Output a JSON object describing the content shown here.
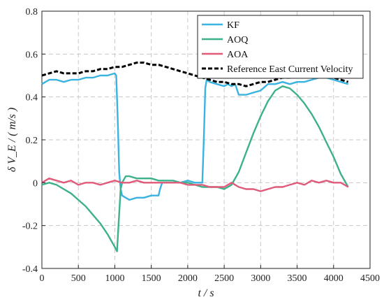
{
  "chart_data": {
    "type": "line",
    "title": "",
    "xlabel": "t / s",
    "ylabel": "δ V_E / ( m/s )",
    "xlim": [
      0,
      4500
    ],
    "ylim": [
      -0.4,
      0.8
    ],
    "xticks": [
      0,
      500,
      1000,
      1500,
      2000,
      2500,
      3000,
      3500,
      4000,
      4500
    ],
    "yticks": [
      -0.4,
      -0.2,
      0,
      0.2,
      0.4,
      0.6,
      0.8
    ],
    "xtick_labels": [
      "0",
      "500",
      "1000",
      "1500",
      "2000",
      "2500",
      "3000",
      "3500",
      "4000",
      "4500"
    ],
    "ytick_labels": [
      "-0.4",
      "-0.2",
      "0",
      "0.2",
      "0.4",
      "0.6",
      "0.8"
    ],
    "grid": true,
    "legend": "top-right",
    "series": [
      {
        "name": "KF",
        "color": "#3bb3e0",
        "dash": "solid",
        "x": [
          0,
          50,
          100,
          200,
          300,
          400,
          500,
          600,
          700,
          800,
          900,
          1000,
          1020,
          1040,
          1060,
          1080,
          1100,
          1150,
          1200,
          1300,
          1400,
          1500,
          1600,
          1620,
          1650,
          1700,
          1800,
          1900,
          2000,
          2100,
          2200,
          2220,
          2240,
          2260,
          2300,
          2400,
          2500,
          2550,
          2600,
          2650,
          2700,
          2800,
          2900,
          3000,
          3100,
          3200,
          3300,
          3400,
          3500,
          3600,
          3700,
          3800,
          3900,
          4000,
          4100,
          4200
        ],
        "y": [
          0.46,
          0.47,
          0.48,
          0.48,
          0.47,
          0.48,
          0.48,
          0.49,
          0.49,
          0.5,
          0.5,
          0.51,
          0.5,
          0.3,
          0.05,
          -0.03,
          -0.06,
          -0.07,
          -0.08,
          -0.07,
          -0.07,
          -0.06,
          -0.06,
          -0.03,
          0.0,
          0.0,
          0.0,
          0.0,
          0.01,
          0.0,
          0.0,
          0.2,
          0.44,
          0.48,
          0.47,
          0.46,
          0.45,
          0.46,
          0.45,
          0.46,
          0.41,
          0.41,
          0.42,
          0.43,
          0.46,
          0.46,
          0.47,
          0.46,
          0.47,
          0.47,
          0.48,
          0.49,
          0.49,
          0.48,
          0.47,
          0.46
        ]
      },
      {
        "name": "AOQ",
        "color": "#3db28a",
        "dash": "solid",
        "x": [
          0,
          100,
          200,
          300,
          400,
          500,
          600,
          700,
          800,
          900,
          1000,
          1030,
          1050,
          1080,
          1100,
          1150,
          1200,
          1300,
          1400,
          1500,
          1600,
          1700,
          1800,
          1900,
          2000,
          2100,
          2200,
          2300,
          2400,
          2500,
          2600,
          2700,
          2800,
          2900,
          3000,
          3100,
          3200,
          3300,
          3400,
          3500,
          3600,
          3700,
          3800,
          3900,
          4000,
          4100,
          4200
        ],
        "y": [
          -0.01,
          0.0,
          -0.01,
          -0.03,
          -0.05,
          -0.08,
          -0.11,
          -0.15,
          -0.19,
          -0.24,
          -0.3,
          -0.32,
          -0.2,
          -0.03,
          0.0,
          0.03,
          0.03,
          0.02,
          0.02,
          0.02,
          0.01,
          0.01,
          0.01,
          0.0,
          0.0,
          -0.01,
          -0.02,
          -0.02,
          -0.02,
          -0.03,
          -0.01,
          0.05,
          0.14,
          0.23,
          0.31,
          0.38,
          0.43,
          0.45,
          0.44,
          0.41,
          0.37,
          0.32,
          0.26,
          0.19,
          0.12,
          0.04,
          -0.02
        ]
      },
      {
        "name": "AOA",
        "color": "#e05a7a",
        "dash": "solid",
        "x": [
          0,
          100,
          200,
          300,
          400,
          500,
          600,
          700,
          800,
          900,
          1000,
          1100,
          1200,
          1300,
          1400,
          1500,
          1600,
          1700,
          1800,
          1900,
          2000,
          2100,
          2200,
          2300,
          2400,
          2500,
          2600,
          2700,
          2800,
          2900,
          3000,
          3100,
          3200,
          3300,
          3400,
          3500,
          3600,
          3700,
          3800,
          3900,
          4000,
          4100,
          4200
        ],
        "y": [
          0.0,
          0.02,
          0.01,
          0.0,
          0.01,
          -0.01,
          0.0,
          0.0,
          -0.01,
          0.0,
          0.01,
          0.0,
          0.0,
          0.01,
          0.0,
          0.0,
          0.0,
          0.0,
          0.0,
          0.0,
          -0.01,
          -0.01,
          -0.01,
          -0.02,
          -0.02,
          -0.02,
          0.0,
          -0.02,
          -0.03,
          -0.03,
          -0.04,
          -0.03,
          -0.02,
          -0.02,
          -0.01,
          0.0,
          -0.01,
          0.01,
          0.0,
          0.01,
          0.0,
          0.0,
          -0.02
        ]
      },
      {
        "name": "Reference East Current Velocity",
        "color": "#000000",
        "dash": "dashed",
        "x": [
          0,
          100,
          200,
          300,
          400,
          500,
          600,
          700,
          800,
          900,
          1000,
          1100,
          1200,
          1300,
          1400,
          1500,
          1600,
          1700,
          1800,
          1900,
          2000,
          2100,
          2200,
          2300,
          2400,
          2500,
          2600,
          2700,
          2800,
          2900,
          3000,
          3100,
          3200,
          3300,
          3400,
          3500,
          3600,
          3700,
          3800,
          3900,
          4000,
          4100,
          4200
        ],
        "y": [
          0.5,
          0.51,
          0.52,
          0.51,
          0.51,
          0.51,
          0.52,
          0.52,
          0.53,
          0.53,
          0.54,
          0.54,
          0.55,
          0.56,
          0.56,
          0.55,
          0.55,
          0.54,
          0.53,
          0.52,
          0.51,
          0.5,
          0.49,
          0.48,
          0.47,
          0.47,
          0.46,
          0.46,
          0.45,
          0.46,
          0.47,
          0.47,
          0.48,
          0.49,
          0.49,
          0.5,
          0.51,
          0.5,
          0.51,
          0.5,
          0.49,
          0.48,
          0.47
        ]
      }
    ]
  }
}
